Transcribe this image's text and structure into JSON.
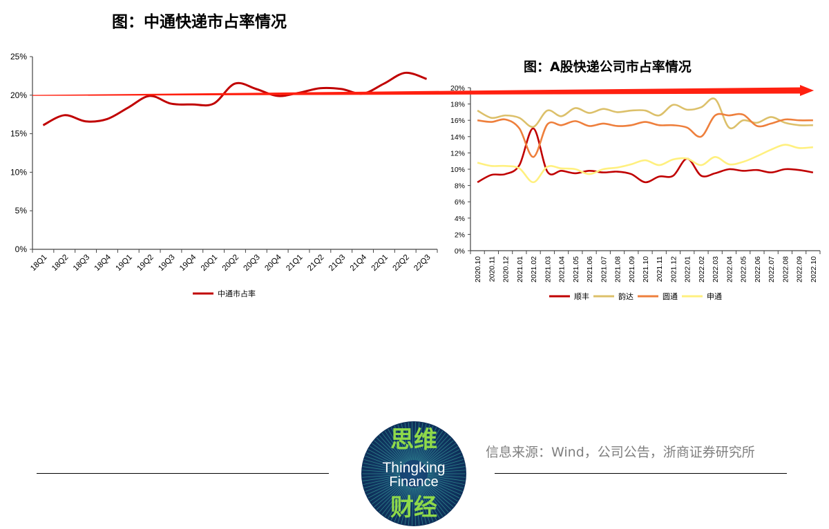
{
  "chart_data": [
    {
      "type": "line",
      "title": "图：中通快递市占率情况",
      "categories": [
        "18Q1",
        "18Q2",
        "18Q3",
        "18Q4",
        "19Q1",
        "19Q2",
        "19Q3",
        "19Q4",
        "20Q1",
        "20Q2",
        "20Q3",
        "20Q4",
        "21Q1",
        "21Q2",
        "21Q3",
        "21Q4",
        "22Q1",
        "22Q2",
        "22Q3"
      ],
      "series": [
        {
          "name": "中通市占率",
          "color": "#c00000",
          "values": [
            16.1,
            17.4,
            16.6,
            16.9,
            18.4,
            19.9,
            18.9,
            18.8,
            18.9,
            21.5,
            20.8,
            19.9,
            20.3,
            20.9,
            20.8,
            20.2,
            21.5,
            22.9,
            22.1
          ]
        }
      ],
      "yticks": [
        "0%",
        "5%",
        "10%",
        "15%",
        "20%",
        "25%"
      ],
      "ylim": [
        0,
        25
      ],
      "legend": "bottom",
      "grid": false
    },
    {
      "type": "line",
      "title": "图：A股快递公司市占率情况",
      "categories": [
        "2020.10",
        "2020.11",
        "2020.12",
        "2021.01",
        "2021.02",
        "2021.03",
        "2021.04",
        "2021.05",
        "2021.06",
        "2021.07",
        "2021.08",
        "2021.09",
        "2021.10",
        "2021.11",
        "2021.12",
        "2022.01",
        "2022.02",
        "2022.03",
        "2022.04",
        "2022.05",
        "2022.06",
        "2022.07",
        "2022.08",
        "2022.09",
        "2022.10"
      ],
      "series": [
        {
          "name": "顺丰",
          "color": "#c00000",
          "values": [
            8.4,
            9.3,
            9.4,
            10.5,
            15.0,
            9.7,
            9.8,
            9.5,
            9.8,
            9.6,
            9.7,
            9.4,
            8.4,
            9.1,
            9.2,
            11.3,
            9.2,
            9.5,
            10.0,
            9.8,
            9.9,
            9.6,
            10.0,
            9.9,
            9.6
          ]
        },
        {
          "name": "韵达",
          "color": "#dcc06a",
          "values": [
            17.2,
            16.3,
            16.6,
            16.3,
            15.2,
            17.2,
            16.5,
            17.5,
            16.9,
            17.4,
            17.0,
            17.2,
            17.2,
            16.6,
            17.9,
            17.3,
            17.6,
            18.6,
            15.1,
            16.0,
            15.7,
            16.4,
            15.7,
            15.4,
            15.4
          ]
        },
        {
          "name": "圆通",
          "color": "#ee7f3c",
          "values": [
            16.0,
            15.8,
            16.1,
            15.0,
            11.5,
            15.5,
            15.4,
            15.9,
            15.3,
            15.6,
            15.3,
            15.4,
            15.8,
            15.4,
            15.4,
            15.1,
            14.0,
            16.6,
            16.6,
            16.7,
            15.3,
            15.6,
            16.1,
            16.0,
            16.0
          ]
        },
        {
          "name": "申通",
          "color": "#fff07f",
          "values": [
            10.8,
            10.4,
            10.4,
            10.1,
            8.4,
            10.3,
            10.1,
            10.0,
            9.4,
            10.0,
            10.2,
            10.6,
            11.1,
            10.5,
            11.2,
            11.3,
            10.5,
            11.5,
            10.6,
            10.9,
            11.6,
            12.4,
            13.0,
            12.6,
            12.7
          ]
        }
      ],
      "yticks": [
        "0%",
        "2%",
        "4%",
        "6%",
        "8%",
        "10%",
        "12%",
        "14%",
        "16%",
        "18%",
        "20%"
      ],
      "ylim": [
        0,
        20
      ],
      "legend": "bottom",
      "grid": false
    }
  ],
  "annotation": {
    "arrow_color": "#ff2010",
    "level": "20%"
  },
  "logo": {
    "line1": "思维",
    "line2": "Thingking",
    "line3": "Finance",
    "line4": "财经"
  },
  "source": "信息来源：Wind，公司公告，浙商证券研究所"
}
